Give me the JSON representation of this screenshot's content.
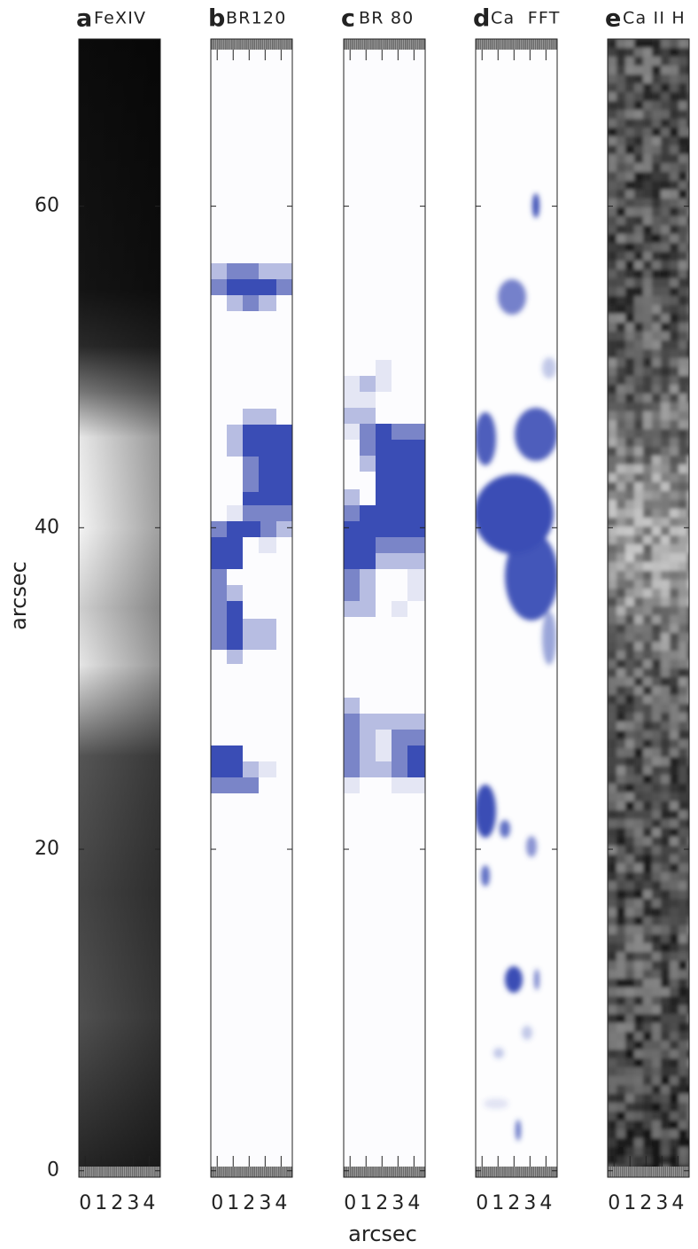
{
  "figure": {
    "xlabel": "arcsec"
  },
  "chart_data": [
    {
      "type": "image",
      "panel": "a",
      "title": "FeXIV",
      "ylabel": "arcsec",
      "xlim": [
        -0.4,
        4.7
      ],
      "xticks": [
        0,
        1,
        2,
        3,
        4
      ],
      "ylim": [
        -0.4,
        70.4
      ],
      "yticks": [
        0,
        20,
        40,
        60
      ]
    },
    {
      "type": "image",
      "panel": "b",
      "title": "BR120",
      "xlim": [
        -0.4,
        4.7
      ],
      "xticks": [
        0,
        1,
        2,
        3,
        4
      ],
      "ylim": [
        -0.4,
        70.4
      ],
      "yticks": [
        0,
        20,
        40,
        60
      ]
    },
    {
      "type": "image",
      "panel": "c",
      "title": "BR 80",
      "xlim": [
        -0.4,
        4.7
      ],
      "xticks": [
        0,
        1,
        2,
        3,
        4
      ],
      "ylim": [
        -0.4,
        70.4
      ],
      "yticks": [
        0,
        20,
        40,
        60
      ]
    },
    {
      "type": "image",
      "panel": "d",
      "title": "Ca  FFT",
      "xlim": [
        -0.4,
        4.7
      ],
      "xticks": [
        0,
        1,
        2,
        3,
        4
      ],
      "ylim": [
        -0.4,
        70.4
      ],
      "yticks": [
        0,
        20,
        40,
        60
      ]
    },
    {
      "type": "image",
      "panel": "e",
      "title": "Ca II H",
      "xlim": [
        -0.4,
        4.7
      ],
      "xticks": [
        0,
        1,
        2,
        3,
        4
      ],
      "ylim": [
        -0.4,
        70.4
      ],
      "yticks": [
        0,
        20,
        40,
        60
      ]
    }
  ]
}
